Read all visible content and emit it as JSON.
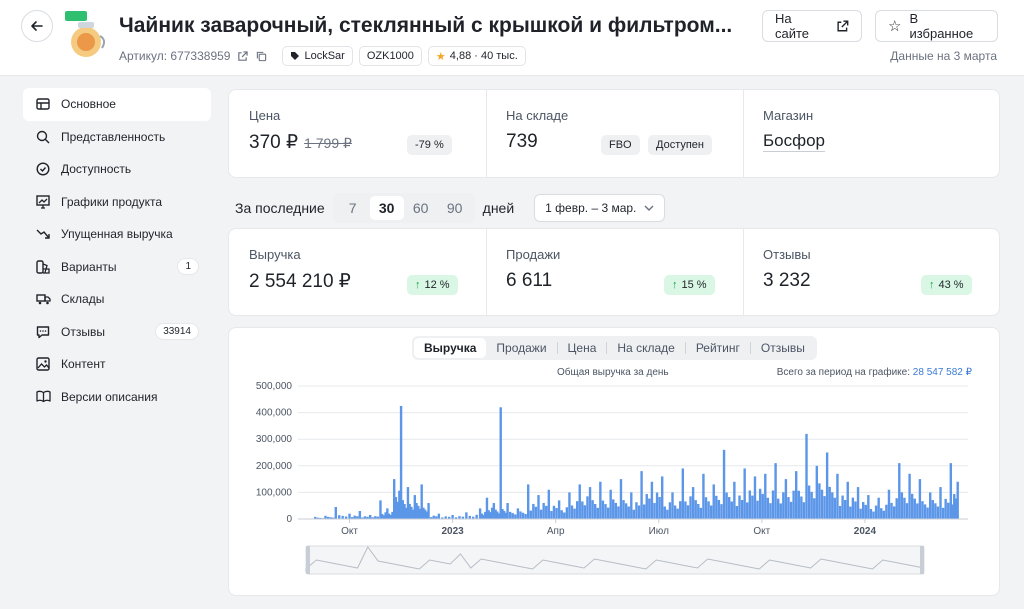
{
  "header": {
    "title": "Чайник заварочный, стеклянный с крышкой и фильтром...",
    "article_label": "Артикул: 677338959",
    "tags": [
      "LockSar",
      "OZK1000"
    ],
    "rating": "4,88 · 40 тыс.",
    "site_button": "На сайте",
    "favorite_button": "В избранное",
    "data_date": "Данные на 3 марта"
  },
  "sidebar": {
    "items": [
      {
        "label": "Основное",
        "icon": "table-icon",
        "active": true
      },
      {
        "label": "Представленность",
        "icon": "search-icon"
      },
      {
        "label": "Доступность",
        "icon": "check-circle-icon"
      },
      {
        "label": "Графики продукта",
        "icon": "chart-icon"
      },
      {
        "label": "Упущенная выручка",
        "icon": "trend-down-icon"
      },
      {
        "label": "Варианты",
        "icon": "palette-icon",
        "badge": "1"
      },
      {
        "label": "Склады",
        "icon": "truck-icon"
      },
      {
        "label": "Отзывы",
        "icon": "chat-icon",
        "badge": "33914"
      },
      {
        "label": "Контент",
        "icon": "image-icon"
      },
      {
        "label": "Версии описания",
        "icon": "book-icon"
      }
    ]
  },
  "summary": {
    "price_label": "Цена",
    "price_value": "370 ₽",
    "price_old": "1 799 ₽",
    "price_discount": "-79 %",
    "stock_label": "На складе",
    "stock_value": "739",
    "stock_tags": [
      "FBO",
      "Доступен"
    ],
    "store_label": "Магазин",
    "store_value": "Босфор"
  },
  "period": {
    "prefix": "За последние",
    "options": [
      "7",
      "30",
      "60",
      "90"
    ],
    "selected": "30",
    "suffix": "дней",
    "range": "1 февр. – 3 мар."
  },
  "metrics": {
    "revenue_label": "Выручка",
    "revenue_value": "2 554 210 ₽",
    "revenue_change": "12 %",
    "sales_label": "Продажи",
    "sales_value": "6 611",
    "sales_change": "15 %",
    "reviews_label": "Отзывы",
    "reviews_value": "3 232",
    "reviews_change": "43 %"
  },
  "chart_tabs": [
    "Выручка",
    "Продажи",
    "Цена",
    "На складе",
    "Рейтинг",
    "Отзывы"
  ],
  "chart_subtitle": "Общая выручка за день",
  "chart_total_label": "Всего за период на графике:",
  "chart_total_value": "28 547 582 ₽",
  "colors": {
    "bar": "#5b96e8",
    "accent_green": "#17a34a",
    "star": "#f5a623"
  },
  "chart_data": {
    "type": "bar",
    "ylim": [
      0,
      500000
    ],
    "y_ticks": [
      "0",
      "100,000",
      "200,000",
      "300,000",
      "400,000",
      "500,000"
    ],
    "x_ticks": [
      "Окт",
      "2023",
      "Апр",
      "Июл",
      "Окт",
      "2024"
    ],
    "x_tick_positions_months": [
      1,
      4,
      7,
      10,
      13,
      16
    ],
    "values": [
      {
        "month": 0.0,
        "v": 8000
      },
      {
        "month": 0.3,
        "v": 12000
      },
      {
        "month": 0.6,
        "v": 45000
      },
      {
        "month": 1.0,
        "v": 20000
      },
      {
        "month": 1.3,
        "v": 30000
      },
      {
        "month": 1.6,
        "v": 15000
      },
      {
        "month": 1.9,
        "v": 70000
      },
      {
        "month": 2.1,
        "v": 40000
      },
      {
        "month": 2.3,
        "v": 150000
      },
      {
        "month": 2.5,
        "v": 425000
      },
      {
        "month": 2.7,
        "v": 120000
      },
      {
        "month": 2.9,
        "v": 90000
      },
      {
        "month": 3.1,
        "v": 130000
      },
      {
        "month": 3.3,
        "v": 60000
      },
      {
        "month": 3.6,
        "v": 20000
      },
      {
        "month": 4.0,
        "v": 15000
      },
      {
        "month": 4.4,
        "v": 25000
      },
      {
        "month": 4.8,
        "v": 40000
      },
      {
        "month": 5.0,
        "v": 80000
      },
      {
        "month": 5.2,
        "v": 60000
      },
      {
        "month": 5.4,
        "v": 420000
      },
      {
        "month": 5.6,
        "v": 60000
      },
      {
        "month": 5.9,
        "v": 40000
      },
      {
        "month": 6.2,
        "v": 130000
      },
      {
        "month": 6.5,
        "v": 90000
      },
      {
        "month": 6.8,
        "v": 110000
      },
      {
        "month": 7.1,
        "v": 70000
      },
      {
        "month": 7.4,
        "v": 100000
      },
      {
        "month": 7.7,
        "v": 130000
      },
      {
        "month": 8.0,
        "v": 120000
      },
      {
        "month": 8.3,
        "v": 140000
      },
      {
        "month": 8.6,
        "v": 110000
      },
      {
        "month": 8.9,
        "v": 150000
      },
      {
        "month": 9.2,
        "v": 100000
      },
      {
        "month": 9.5,
        "v": 180000
      },
      {
        "month": 9.8,
        "v": 140000
      },
      {
        "month": 10.1,
        "v": 160000
      },
      {
        "month": 10.4,
        "v": 100000
      },
      {
        "month": 10.7,
        "v": 190000
      },
      {
        "month": 11.0,
        "v": 120000
      },
      {
        "month": 11.3,
        "v": 170000
      },
      {
        "month": 11.6,
        "v": 130000
      },
      {
        "month": 11.9,
        "v": 260000
      },
      {
        "month": 12.2,
        "v": 140000
      },
      {
        "month": 12.5,
        "v": 190000
      },
      {
        "month": 12.8,
        "v": 160000
      },
      {
        "month": 13.1,
        "v": 170000
      },
      {
        "month": 13.4,
        "v": 210000
      },
      {
        "month": 13.7,
        "v": 150000
      },
      {
        "month": 14.0,
        "v": 180000
      },
      {
        "month": 14.3,
        "v": 320000
      },
      {
        "month": 14.6,
        "v": 200000
      },
      {
        "month": 14.9,
        "v": 250000
      },
      {
        "month": 15.2,
        "v": 170000
      },
      {
        "month": 15.5,
        "v": 140000
      },
      {
        "month": 15.8,
        "v": 120000
      },
      {
        "month": 16.1,
        "v": 90000
      },
      {
        "month": 16.4,
        "v": 80000
      },
      {
        "month": 16.7,
        "v": 110000
      },
      {
        "month": 17.0,
        "v": 210000
      },
      {
        "month": 17.3,
        "v": 170000
      },
      {
        "month": 17.6,
        "v": 150000
      },
      {
        "month": 17.9,
        "v": 100000
      },
      {
        "month": 18.2,
        "v": 120000
      },
      {
        "month": 18.5,
        "v": 210000
      },
      {
        "month": 18.7,
        "v": 140000
      }
    ]
  }
}
